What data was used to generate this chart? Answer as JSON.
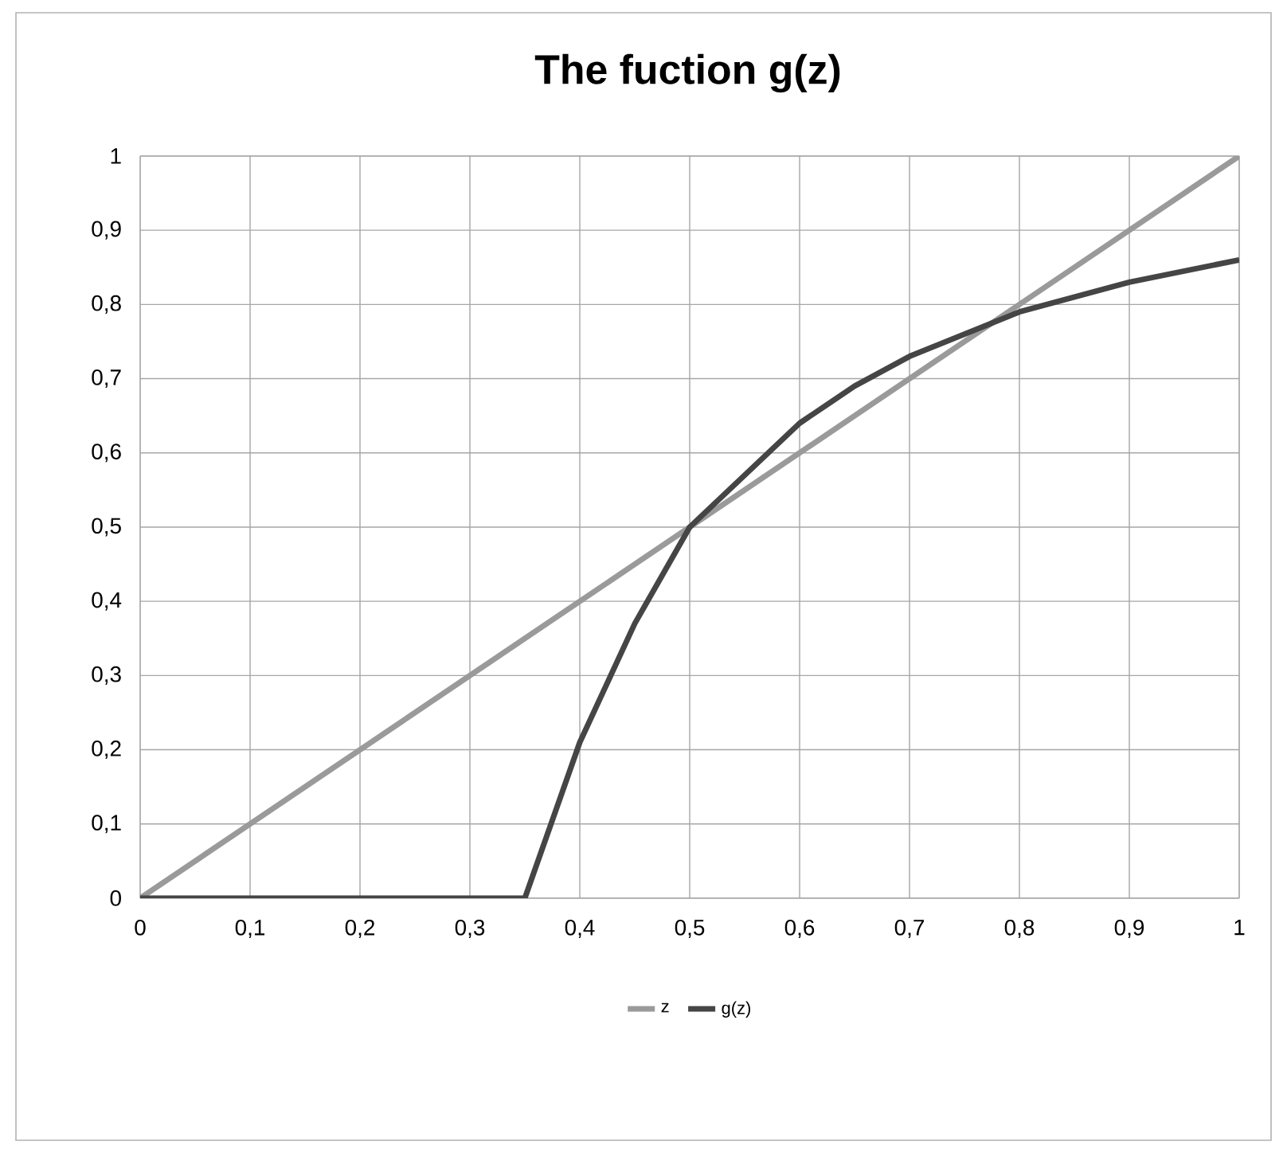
{
  "chart_data": {
    "type": "line",
    "title": "The fuction g(z)",
    "series": [
      {
        "name": "z",
        "color": "#9a9a9a",
        "x": [
          0,
          1
        ],
        "values": [
          0,
          1
        ]
      },
      {
        "name": "g(z)",
        "color": "#454545",
        "x": [
          0,
          0.35,
          0.4,
          0.45,
          0.5,
          0.55,
          0.6,
          0.65,
          0.7,
          0.75,
          0.8,
          0.85,
          0.9,
          0.95,
          1
        ],
        "values": [
          0,
          0,
          0.21,
          0.37,
          0.5,
          0.57,
          0.64,
          0.69,
          0.73,
          0.76,
          0.79,
          0.81,
          0.83,
          0.845,
          0.86
        ]
      }
    ],
    "xlim": [
      0,
      1
    ],
    "ylim": [
      0,
      1
    ],
    "xticks": [
      0,
      {
        "value": 0.1,
        "label": "0,1"
      },
      {
        "value": 0.2,
        "label": "0,2"
      },
      {
        "value": 0.3,
        "label": "0,3"
      },
      {
        "value": 0.4,
        "label": "0,4"
      },
      {
        "value": 0.5,
        "label": "0,5"
      },
      {
        "value": 0.6,
        "label": "0,6"
      },
      {
        "value": 0.7,
        "label": "0,7"
      },
      {
        "value": 0.8,
        "label": "0,8"
      },
      {
        "value": 0.9,
        "label": "0,9"
      },
      1
    ],
    "yticks": [
      0,
      {
        "value": 0.1,
        "label": "0,1"
      },
      {
        "value": 0.2,
        "label": "0,2"
      },
      {
        "value": 0.3,
        "label": "0,3"
      },
      {
        "value": 0.4,
        "label": "0,4"
      },
      {
        "value": 0.5,
        "label": "0,5"
      },
      {
        "value": 0.6,
        "label": "0,6"
      },
      {
        "value": 0.7,
        "label": "0,7"
      },
      {
        "value": 0.8,
        "label": "0,8"
      },
      {
        "value": 0.9,
        "label": "0,9"
      },
      1
    ],
    "grid": true,
    "legend": "bottom",
    "marker": "none",
    "line_style": "solid"
  }
}
